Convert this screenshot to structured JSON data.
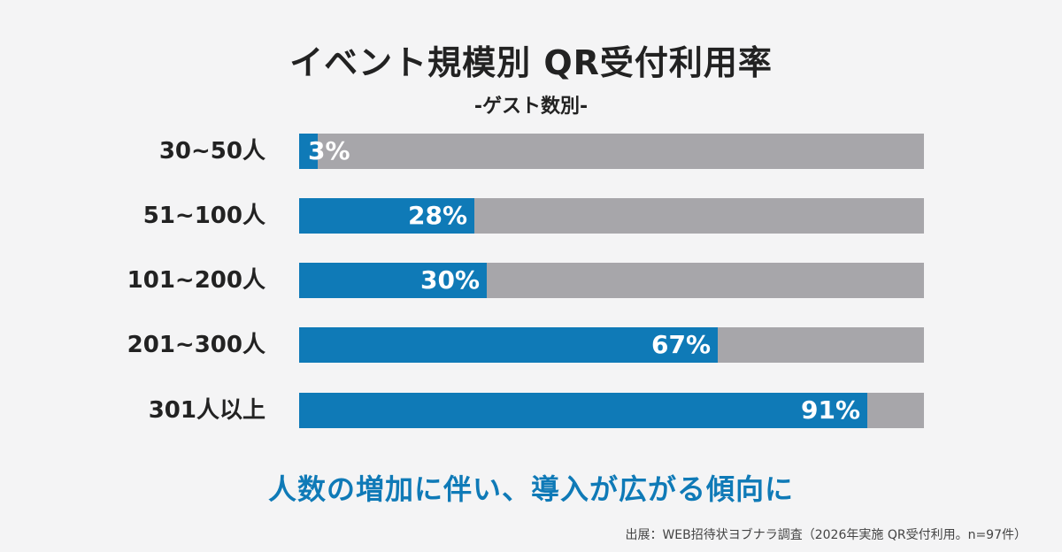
{
  "title": "イベント規模別 QR受付利用率",
  "subtitle": "-ゲスト数別-",
  "conclusion": "人数の増加に伴い、導入が広がる傾向に",
  "source": "出展：WEB招待状ヨブナラ調査（2026年実施 QR受付利用。n=97件）",
  "colors": {
    "fill": "#0f7ab7",
    "track": "#a7a6aa",
    "background": "#f4f4f5"
  },
  "chart_data": {
    "type": "bar",
    "orientation": "horizontal",
    "categories": [
      "30~50人",
      "51~100人",
      "101~200人",
      "201~300人",
      "301人以上"
    ],
    "values": [
      3,
      28,
      30,
      67,
      91
    ],
    "value_labels": [
      "3%",
      "28%",
      "30%",
      "67%",
      "91%"
    ],
    "xlim": [
      0,
      100
    ],
    "grid": false
  }
}
